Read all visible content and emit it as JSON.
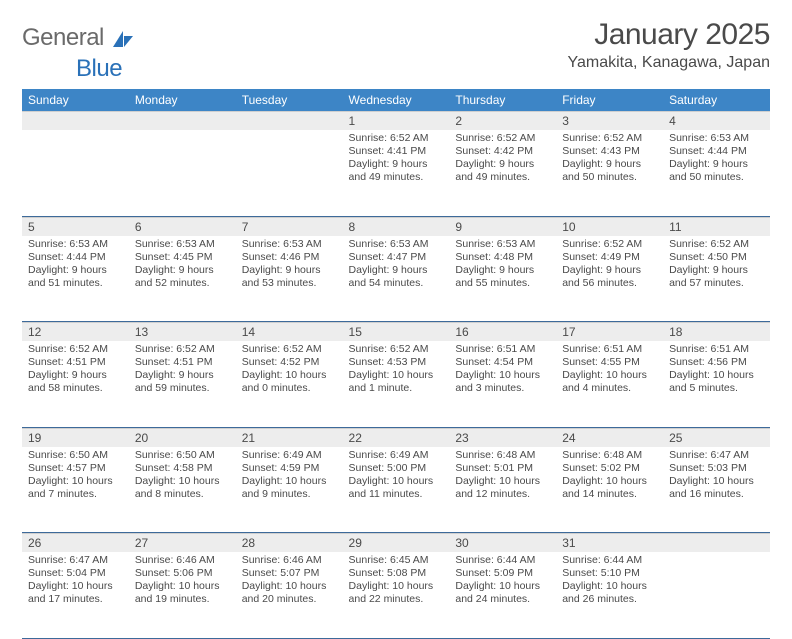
{
  "logo": {
    "text_a": "General",
    "text_b": "Blue",
    "icon_color": "#2a71b8"
  },
  "title": "January 2025",
  "location": "Yamakita, Kanagawa, Japan",
  "colors": {
    "header_bg": "#3d85c6",
    "header_text": "#ffffff",
    "daynum_bg": "#ededed",
    "rule": "#3d6a9a",
    "body_text": "#4a4a4a"
  },
  "day_headers": [
    "Sunday",
    "Monday",
    "Tuesday",
    "Wednesday",
    "Thursday",
    "Friday",
    "Saturday"
  ],
  "weeks": [
    [
      null,
      null,
      null,
      {
        "n": "1",
        "sr": "6:52 AM",
        "ss": "4:41 PM",
        "dl": "9 hours and 49 minutes."
      },
      {
        "n": "2",
        "sr": "6:52 AM",
        "ss": "4:42 PM",
        "dl": "9 hours and 49 minutes."
      },
      {
        "n": "3",
        "sr": "6:52 AM",
        "ss": "4:43 PM",
        "dl": "9 hours and 50 minutes."
      },
      {
        "n": "4",
        "sr": "6:53 AM",
        "ss": "4:44 PM",
        "dl": "9 hours and 50 minutes."
      }
    ],
    [
      {
        "n": "5",
        "sr": "6:53 AM",
        "ss": "4:44 PM",
        "dl": "9 hours and 51 minutes."
      },
      {
        "n": "6",
        "sr": "6:53 AM",
        "ss": "4:45 PM",
        "dl": "9 hours and 52 minutes."
      },
      {
        "n": "7",
        "sr": "6:53 AM",
        "ss": "4:46 PM",
        "dl": "9 hours and 53 minutes."
      },
      {
        "n": "8",
        "sr": "6:53 AM",
        "ss": "4:47 PM",
        "dl": "9 hours and 54 minutes."
      },
      {
        "n": "9",
        "sr": "6:53 AM",
        "ss": "4:48 PM",
        "dl": "9 hours and 55 minutes."
      },
      {
        "n": "10",
        "sr": "6:52 AM",
        "ss": "4:49 PM",
        "dl": "9 hours and 56 minutes."
      },
      {
        "n": "11",
        "sr": "6:52 AM",
        "ss": "4:50 PM",
        "dl": "9 hours and 57 minutes."
      }
    ],
    [
      {
        "n": "12",
        "sr": "6:52 AM",
        "ss": "4:51 PM",
        "dl": "9 hours and 58 minutes."
      },
      {
        "n": "13",
        "sr": "6:52 AM",
        "ss": "4:51 PM",
        "dl": "9 hours and 59 minutes."
      },
      {
        "n": "14",
        "sr": "6:52 AM",
        "ss": "4:52 PM",
        "dl": "10 hours and 0 minutes."
      },
      {
        "n": "15",
        "sr": "6:52 AM",
        "ss": "4:53 PM",
        "dl": "10 hours and 1 minute."
      },
      {
        "n": "16",
        "sr": "6:51 AM",
        "ss": "4:54 PM",
        "dl": "10 hours and 3 minutes."
      },
      {
        "n": "17",
        "sr": "6:51 AM",
        "ss": "4:55 PM",
        "dl": "10 hours and 4 minutes."
      },
      {
        "n": "18",
        "sr": "6:51 AM",
        "ss": "4:56 PM",
        "dl": "10 hours and 5 minutes."
      }
    ],
    [
      {
        "n": "19",
        "sr": "6:50 AM",
        "ss": "4:57 PM",
        "dl": "10 hours and 7 minutes."
      },
      {
        "n": "20",
        "sr": "6:50 AM",
        "ss": "4:58 PM",
        "dl": "10 hours and 8 minutes."
      },
      {
        "n": "21",
        "sr": "6:49 AM",
        "ss": "4:59 PM",
        "dl": "10 hours and 9 minutes."
      },
      {
        "n": "22",
        "sr": "6:49 AM",
        "ss": "5:00 PM",
        "dl": "10 hours and 11 minutes."
      },
      {
        "n": "23",
        "sr": "6:48 AM",
        "ss": "5:01 PM",
        "dl": "10 hours and 12 minutes."
      },
      {
        "n": "24",
        "sr": "6:48 AM",
        "ss": "5:02 PM",
        "dl": "10 hours and 14 minutes."
      },
      {
        "n": "25",
        "sr": "6:47 AM",
        "ss": "5:03 PM",
        "dl": "10 hours and 16 minutes."
      }
    ],
    [
      {
        "n": "26",
        "sr": "6:47 AM",
        "ss": "5:04 PM",
        "dl": "10 hours and 17 minutes."
      },
      {
        "n": "27",
        "sr": "6:46 AM",
        "ss": "5:06 PM",
        "dl": "10 hours and 19 minutes."
      },
      {
        "n": "28",
        "sr": "6:46 AM",
        "ss": "5:07 PM",
        "dl": "10 hours and 20 minutes."
      },
      {
        "n": "29",
        "sr": "6:45 AM",
        "ss": "5:08 PM",
        "dl": "10 hours and 22 minutes."
      },
      {
        "n": "30",
        "sr": "6:44 AM",
        "ss": "5:09 PM",
        "dl": "10 hours and 24 minutes."
      },
      {
        "n": "31",
        "sr": "6:44 AM",
        "ss": "5:10 PM",
        "dl": "10 hours and 26 minutes."
      },
      null
    ]
  ],
  "labels": {
    "sunrise": "Sunrise:",
    "sunset": "Sunset:",
    "daylight": "Daylight:"
  }
}
